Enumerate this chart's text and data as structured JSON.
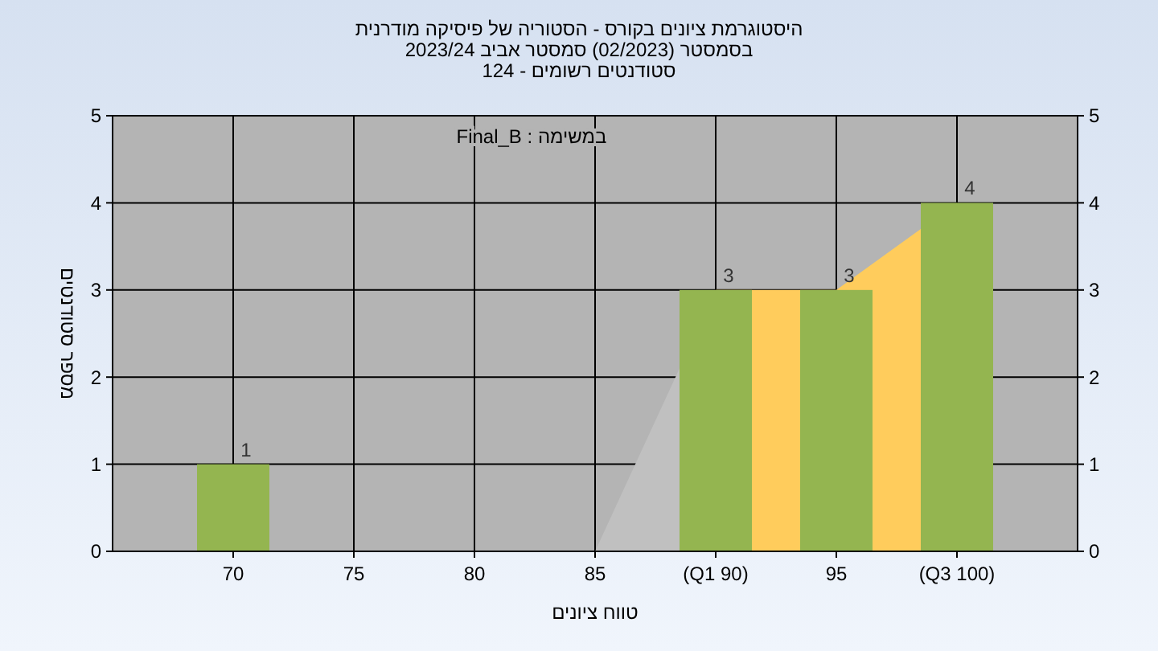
{
  "chart_data": {
    "type": "bar",
    "title": "היסטוגרמת ציונים בקורס - הסטוריה של פיסיקה מודרנית",
    "subtitle": [
      "בסמסטר  (02/2023)  סמסטר אביב 2023/24",
      "סטודנטים רשומים - 124"
    ],
    "xlabel": "טווח ציונים",
    "ylabel": "מספר סטודנטים",
    "annotations": [
      "במשימה : Final_B"
    ],
    "categories": [
      "70",
      "75",
      "80",
      "85",
      "(Q1 90)",
      "95",
      "(Q3 100)"
    ],
    "series": [
      {
        "type": "area",
        "color": "#c0c0c0",
        "values": [
          null,
          null,
          null,
          0,
          3,
          null,
          null
        ]
      },
      {
        "type": "area",
        "color": "#ffcc5c",
        "values": [
          null,
          null,
          null,
          null,
          3,
          3,
          4
        ]
      },
      {
        "type": "bar",
        "color": "#94b550",
        "values": [
          1,
          0,
          0,
          0,
          3,
          3,
          4
        ],
        "value_labels": [
          "1",
          null,
          null,
          null,
          "3",
          "3",
          "4"
        ]
      }
    ],
    "ylim": [
      0,
      5
    ],
    "yticks": [
      0,
      1,
      2,
      3,
      4,
      5
    ],
    "y2lim": [
      0,
      5
    ],
    "y2ticks": [
      0,
      1,
      2,
      3,
      4,
      5
    ],
    "grid": true
  }
}
